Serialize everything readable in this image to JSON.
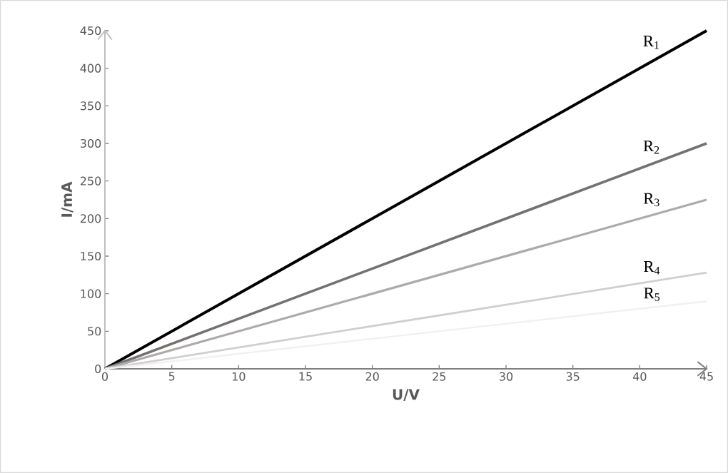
{
  "chart_data": {
    "type": "line",
    "xlabel": "U/V",
    "ylabel": "I/mA",
    "x": [
      0,
      45
    ],
    "xlim": [
      0,
      45
    ],
    "ylim": [
      0,
      450
    ],
    "xticks": [
      0,
      5,
      10,
      15,
      20,
      25,
      30,
      35,
      40,
      45
    ],
    "yticks": [
      0,
      50,
      100,
      150,
      200,
      250,
      300,
      350,
      400,
      450
    ],
    "marker": "none",
    "line_style": "solid",
    "series": [
      {
        "name": "R$_{1}$",
        "color": "#000000",
        "values": [
          0,
          450
        ]
      },
      {
        "name": "R$_{2}$",
        "color": "#767171",
        "values": [
          0,
          300
        ]
      },
      {
        "name": "R$_{3}$",
        "color": "#aeaaaa",
        "values": [
          0,
          225
        ]
      },
      {
        "name": "R$_{4}$",
        "color": "#d0cece",
        "values": [
          0,
          128
        ]
      },
      {
        "name": "R$_{5}$",
        "color": "#f0f0f0",
        "values": [
          0,
          90
        ]
      }
    ]
  }
}
